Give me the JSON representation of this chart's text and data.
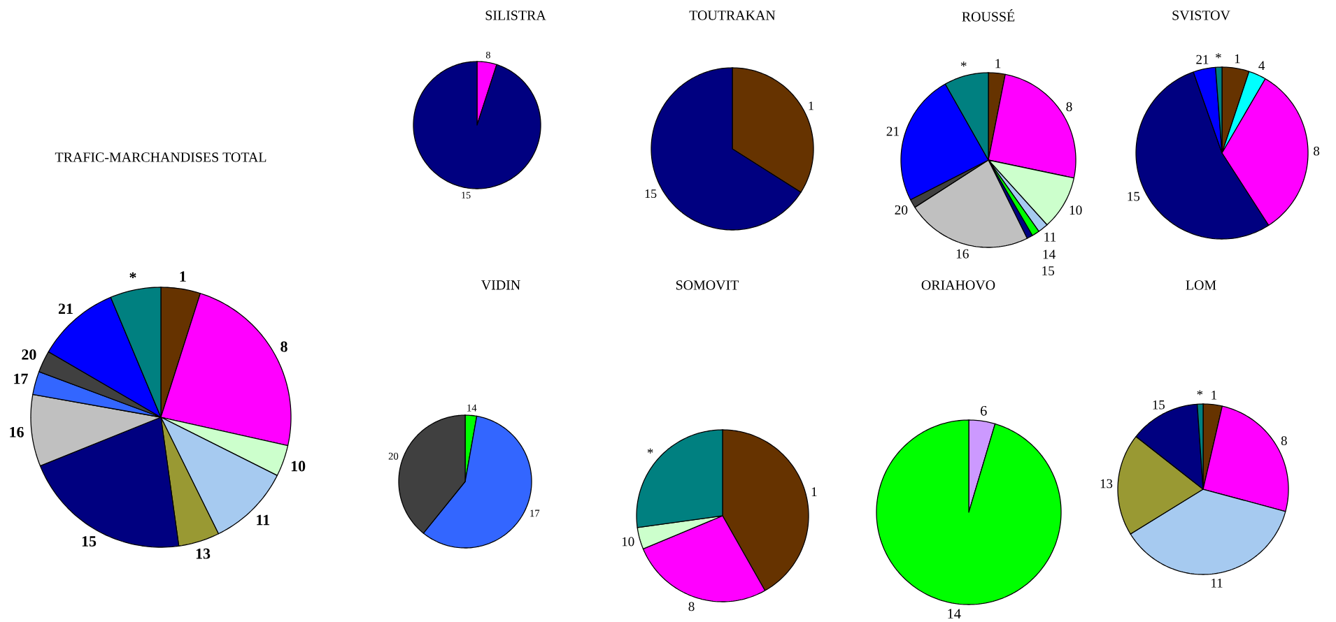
{
  "chart_data": [
    {
      "type": "pie",
      "title": "TRAFIC-MARCHANDISES TOTAL",
      "categories": [
        "1",
        "8",
        "10",
        "11",
        "13",
        "15",
        "16",
        "17",
        "20",
        "21",
        "*"
      ],
      "values": [
        4.9,
        23.6,
        3.9,
        10.3,
        5.1,
        21.1,
        8.9,
        2.9,
        2.7,
        10.3,
        6.3
      ],
      "colors": [
        "#663300",
        "#ff00ff",
        "#ccffcc",
        "#a6caf0",
        "#999933",
        "#000080",
        "#c0c0c0",
        "#3366ff",
        "#404040",
        "#0000ff",
        "#008080"
      ]
    },
    {
      "type": "pie",
      "title": "SILISTRA",
      "categories": [
        "8",
        "15"
      ],
      "values": [
        5,
        95
      ],
      "colors": [
        "#ff00ff",
        "#000080"
      ]
    },
    {
      "type": "pie",
      "title": "TOUTRAKAN",
      "categories": [
        "1",
        "15"
      ],
      "values": [
        34,
        66
      ],
      "colors": [
        "#663300",
        "#000080"
      ]
    },
    {
      "type": "pie",
      "title": "ROUSSÉ",
      "categories": [
        "1",
        "8",
        "10",
        "11",
        "14",
        "15",
        "16",
        "20",
        "21",
        "*"
      ],
      "values": [
        3.1,
        25.2,
        10.0,
        1.9,
        1.4,
        1.1,
        23.2,
        1.6,
        24.3,
        8.2
      ],
      "colors": [
        "#663300",
        "#ff00ff",
        "#ccffcc",
        "#a6caf0",
        "#00ff00",
        "#000080",
        "#c0c0c0",
        "#404040",
        "#0000ff",
        "#008080"
      ]
    },
    {
      "type": "pie",
      "title": "SVISTOV",
      "categories": [
        "1",
        "4",
        "8",
        "15",
        "21",
        "*"
      ],
      "values": [
        5.1,
        3.3,
        32.5,
        53.7,
        4.2,
        1.2
      ],
      "colors": [
        "#663300",
        "#00ffff",
        "#ff00ff",
        "#000080",
        "#0000ff",
        "#008080"
      ]
    },
    {
      "type": "pie",
      "title": "VIDIN",
      "categories": [
        "14",
        "17",
        "20"
      ],
      "values": [
        2.8,
        58.0,
        39.2
      ],
      "colors": [
        "#00ff00",
        "#3366ff",
        "#404040"
      ]
    },
    {
      "type": "pie",
      "title": "SOMOVIT",
      "categories": [
        "1",
        "8",
        "10",
        "*"
      ],
      "values": [
        41.8,
        26.9,
        4.1,
        27.2
      ],
      "colors": [
        "#663300",
        "#ff00ff",
        "#ccffcc",
        "#008080"
      ]
    },
    {
      "type": "pie",
      "title": "ORIAHOVO",
      "categories": [
        "6",
        "14"
      ],
      "values": [
        4.6,
        95.4
      ],
      "colors": [
        "#cc99ff",
        "#00ff00"
      ]
    },
    {
      "type": "pie",
      "title": "LOM",
      "categories": [
        "1",
        "8",
        "11",
        "13",
        "15",
        "*"
      ],
      "values": [
        3.6,
        25.6,
        37.0,
        19.4,
        13.3,
        1.1
      ],
      "colors": [
        "#663300",
        "#ff00ff",
        "#a6caf0",
        "#999933",
        "#000080",
        "#008080"
      ]
    }
  ]
}
